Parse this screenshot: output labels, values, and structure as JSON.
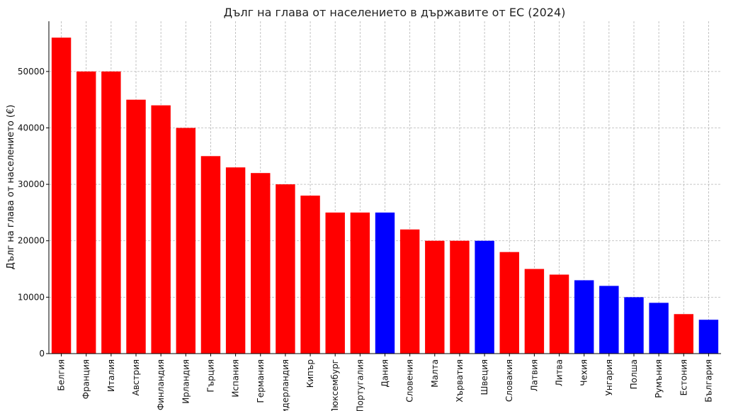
{
  "chart_data": {
    "type": "bar",
    "title": "Дълг на глава от населението в държавите от ЕС (2024)",
    "xlabel": "",
    "ylabel": "Дълг на глава от населението (€)",
    "ylim": [
      0,
      58900
    ],
    "yticks": [
      0,
      10000,
      20000,
      30000,
      40000,
      50000
    ],
    "grid": true,
    "categories": [
      "Белгия",
      "Франция",
      "Италия",
      "Австрия",
      "Финландия",
      "Ирландия",
      "Гърция",
      "Испания",
      "Германия",
      "Нидерландия",
      "Кипър",
      "Люксембург",
      "Португалия",
      "Дания",
      "Словения",
      "Малта",
      "Хърватия",
      "Швеция",
      "Словакия",
      "Латвия",
      "Литва",
      "Чехия",
      "Унгария",
      "Полша",
      "Румъния",
      "Естония",
      "България"
    ],
    "values": [
      56000,
      50000,
      50000,
      45000,
      44000,
      40000,
      35000,
      33000,
      32000,
      30000,
      28000,
      25000,
      25000,
      25000,
      22000,
      20000,
      20000,
      20000,
      18000,
      15000,
      14000,
      13000,
      12000,
      10000,
      9000,
      7000,
      6000
    ],
    "colors": [
      "#ff0000",
      "#ff0000",
      "#ff0000",
      "#ff0000",
      "#ff0000",
      "#ff0000",
      "#ff0000",
      "#ff0000",
      "#ff0000",
      "#ff0000",
      "#ff0000",
      "#ff0000",
      "#ff0000",
      "#0000ff",
      "#ff0000",
      "#ff0000",
      "#ff0000",
      "#0000ff",
      "#ff0000",
      "#ff0000",
      "#ff0000",
      "#0000ff",
      "#0000ff",
      "#0000ff",
      "#0000ff",
      "#ff0000",
      "#0000ff"
    ]
  }
}
